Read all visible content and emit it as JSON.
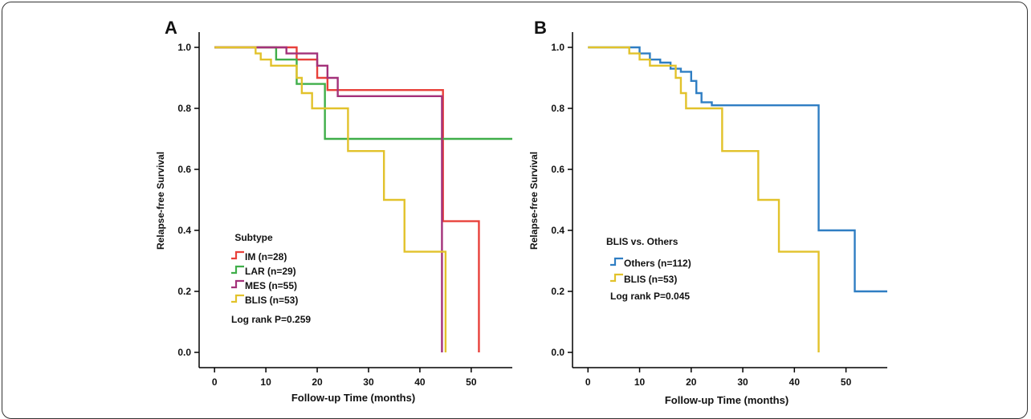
{
  "chart_data": [
    {
      "type": "line",
      "panel_label": "A",
      "xlabel": "Follow-up Time (months)",
      "ylabel": "Relapse-free Survival",
      "xlim": [
        -3,
        58
      ],
      "ylim": [
        -0.05,
        1.05
      ],
      "x_ticks": [
        "0",
        "10",
        "20",
        "30",
        "40",
        "50"
      ],
      "y_ticks": [
        "0.0",
        "0.2",
        "0.4",
        "0.6",
        "0.8",
        "1.0"
      ],
      "legend_title": "Subtype",
      "legend_position": "lower-left",
      "annotation": "Log rank P=0.259",
      "series": [
        {
          "name": "IM (n=28)",
          "color": "#e8403a",
          "steps": [
            [
              0,
              1.0
            ],
            [
              12,
              1.0
            ],
            [
              16,
              0.96
            ],
            [
              20,
              0.9
            ],
            [
              22,
              0.86
            ],
            [
              44.5,
              0.86
            ],
            [
              44.5,
              0.43
            ],
            [
              51.5,
              0.43
            ],
            [
              51.5,
              0.0
            ]
          ]
        },
        {
          "name": "LAR (n=29)",
          "color": "#3fae49",
          "steps": [
            [
              0,
              1.0
            ],
            [
              12,
              1.0
            ],
            [
              12,
              0.96
            ],
            [
              16,
              0.96
            ],
            [
              16,
              0.88
            ],
            [
              21,
              0.88
            ],
            [
              21.5,
              0.7
            ],
            [
              58,
              0.7
            ]
          ]
        },
        {
          "name": "MES (n=55)",
          "color": "#a3317a",
          "steps": [
            [
              0,
              1.0
            ],
            [
              10,
              1.0
            ],
            [
              14,
              0.98
            ],
            [
              19,
              0.98
            ],
            [
              20,
              0.94
            ],
            [
              22,
              0.9
            ],
            [
              24,
              0.84
            ],
            [
              44.3,
              0.84
            ],
            [
              44.3,
              0.0
            ]
          ]
        },
        {
          "name": "BLIS (n=53)",
          "color": "#e2c22b",
          "steps": [
            [
              0,
              1.0
            ],
            [
              6.5,
              1.0
            ],
            [
              8,
              0.98
            ],
            [
              9,
              0.96
            ],
            [
              11,
              0.94
            ],
            [
              13,
              0.94
            ],
            [
              16,
              0.9
            ],
            [
              17,
              0.85
            ],
            [
              19,
              0.8
            ],
            [
              22,
              0.8
            ],
            [
              26,
              0.66
            ],
            [
              32.5,
              0.66
            ],
            [
              33,
              0.5
            ],
            [
              36,
              0.5
            ],
            [
              37,
              0.33
            ],
            [
              44.5,
              0.33
            ],
            [
              45,
              0.0
            ]
          ]
        }
      ]
    },
    {
      "type": "line",
      "panel_label": "B",
      "xlabel": "Follow-up Time (months)",
      "ylabel": "Relapse-free Survival",
      "xlim": [
        -3,
        58
      ],
      "ylim": [
        -0.05,
        1.05
      ],
      "x_ticks": [
        "0",
        "10",
        "20",
        "30",
        "40",
        "50"
      ],
      "y_ticks": [
        "0.0",
        "0.2",
        "0.4",
        "0.6",
        "0.8",
        "1.0"
      ],
      "legend_title": "BLIS vs. Others",
      "legend_position": "lower-left",
      "annotation": "Log rank P=0.045",
      "series": [
        {
          "name": "Others (n=112)",
          "color": "#2f7ec3",
          "steps": [
            [
              0,
              1.0
            ],
            [
              6,
              1.0
            ],
            [
              10,
              0.98
            ],
            [
              12,
              0.96
            ],
            [
              14,
              0.95
            ],
            [
              16,
              0.93
            ],
            [
              18,
              0.92
            ],
            [
              20,
              0.89
            ],
            [
              21,
              0.85
            ],
            [
              22,
              0.82
            ],
            [
              24,
              0.81
            ],
            [
              44.5,
              0.81
            ],
            [
              44.7,
              0.4
            ],
            [
              51.5,
              0.4
            ],
            [
              51.7,
              0.2
            ],
            [
              58,
              0.2
            ]
          ]
        },
        {
          "name": "BLIS (n=53)",
          "color": "#e2c22b",
          "steps": [
            [
              0,
              1.0
            ],
            [
              6.5,
              1.0
            ],
            [
              8,
              0.98
            ],
            [
              10,
              0.96
            ],
            [
              12,
              0.94
            ],
            [
              16,
              0.94
            ],
            [
              17,
              0.9
            ],
            [
              18,
              0.85
            ],
            [
              19,
              0.8
            ],
            [
              25.5,
              0.8
            ],
            [
              26,
              0.66
            ],
            [
              32.5,
              0.66
            ],
            [
              33,
              0.5
            ],
            [
              36,
              0.5
            ],
            [
              37,
              0.33
            ],
            [
              44.5,
              0.33
            ],
            [
              44.7,
              0.0
            ]
          ]
        }
      ]
    }
  ]
}
